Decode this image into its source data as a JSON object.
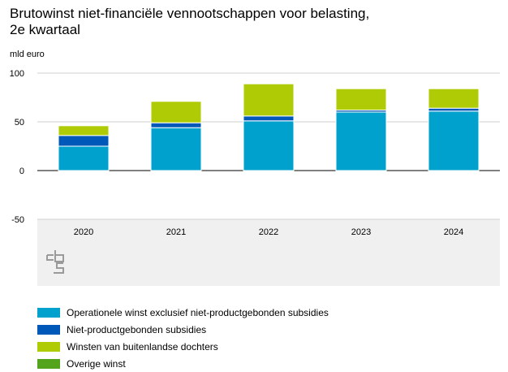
{
  "title_line1": "Brutowinst niet-financiële vennootschappen voor belasting,",
  "title_line2": "2e kwartaal",
  "unit_label": "mld euro",
  "logo_text": "cbs",
  "chart_data": {
    "type": "bar",
    "stacked": true,
    "title": "Brutowinst niet-financiële vennootschappen voor belasting, 2e kwartaal",
    "ylabel": "mld euro",
    "ylim": [
      -50,
      100
    ],
    "yticks": [
      100,
      50,
      0,
      -50
    ],
    "categories": [
      "2020",
      "2021",
      "2022",
      "2023",
      "2024"
    ],
    "series": [
      {
        "name": "Operationele winst exclusief niet-productgebonden subsidies",
        "color": "#00A1CD",
        "values": [
          25,
          44,
          51,
          60,
          61
        ]
      },
      {
        "name": "Niet-productgebonden subsidies",
        "color": "#0058B8",
        "values": [
          11,
          5,
          5,
          2,
          3
        ]
      },
      {
        "name": "Winsten van buitenlandse dochters",
        "color": "#AFCB05",
        "values": [
          10,
          22,
          33,
          22,
          20
        ]
      },
      {
        "name": "Overige winst",
        "color": "#53A31D",
        "values": [
          0,
          0,
          0,
          0,
          0
        ]
      }
    ],
    "legend_position": "bottom"
  }
}
